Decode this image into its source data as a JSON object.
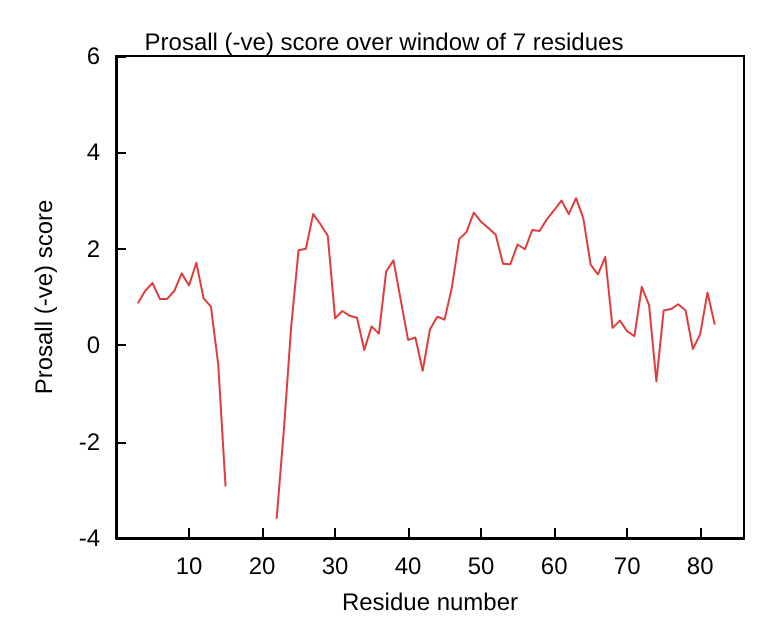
{
  "chart_data": {
    "type": "line",
    "title": "Prosall (-ve) score over window of 7 residues",
    "xlabel": "Residue number",
    "ylabel": "Prosall (-ve) score",
    "x": [
      3,
      4,
      5,
      6,
      7,
      8,
      9,
      10,
      11,
      12,
      13,
      14,
      15,
      16,
      17,
      18,
      19,
      20,
      21,
      22,
      23,
      24,
      25,
      26,
      27,
      28,
      29,
      30,
      31,
      32,
      33,
      34,
      35,
      36,
      37,
      38,
      39,
      40,
      41,
      42,
      43,
      44,
      45,
      46,
      47,
      48,
      49,
      50,
      51,
      52,
      53,
      54,
      55,
      56,
      57,
      58,
      59,
      60,
      61,
      62,
      63,
      64,
      65,
      66,
      67,
      68,
      69,
      70,
      71,
      72,
      73,
      74,
      75,
      76,
      77,
      78,
      79,
      80,
      81,
      82
    ],
    "series": [
      {
        "color": "#e03c3c",
        "values": [
          0.87,
          1.13,
          1.29,
          0.96,
          0.96,
          1.13,
          1.49,
          1.24,
          1.71,
          0.97,
          0.8,
          -0.4,
          -2.93,
          null,
          null,
          null,
          null,
          null,
          null,
          -3.6,
          -1.73,
          0.4,
          1.97,
          2.0,
          2.72,
          2.51,
          2.27,
          0.56,
          0.71,
          0.61,
          0.57,
          -0.1,
          0.39,
          0.24,
          1.53,
          1.76,
          0.93,
          0.11,
          0.16,
          -0.53,
          0.33,
          0.59,
          0.53,
          1.2,
          2.2,
          2.35,
          2.75,
          2.56,
          2.43,
          2.29,
          1.69,
          1.68,
          2.09,
          1.99,
          2.39,
          2.37,
          2.61,
          2.8,
          3.0,
          2.72,
          3.05,
          2.63,
          1.67,
          1.47,
          1.83,
          0.36,
          0.51,
          0.29,
          0.19,
          1.21,
          0.83,
          -0.75,
          0.72,
          0.75,
          0.85,
          0.72,
          -0.08,
          0.23,
          1.09,
          0.43
        ]
      }
    ],
    "xlim": [
      0,
      86
    ],
    "xticks": [
      10,
      20,
      30,
      40,
      50,
      60,
      70,
      80
    ],
    "ylim": [
      -4,
      6
    ],
    "yticks": [
      -4,
      -2,
      0,
      2,
      4,
      6
    ],
    "marker": "none",
    "line_style": "solid"
  }
}
